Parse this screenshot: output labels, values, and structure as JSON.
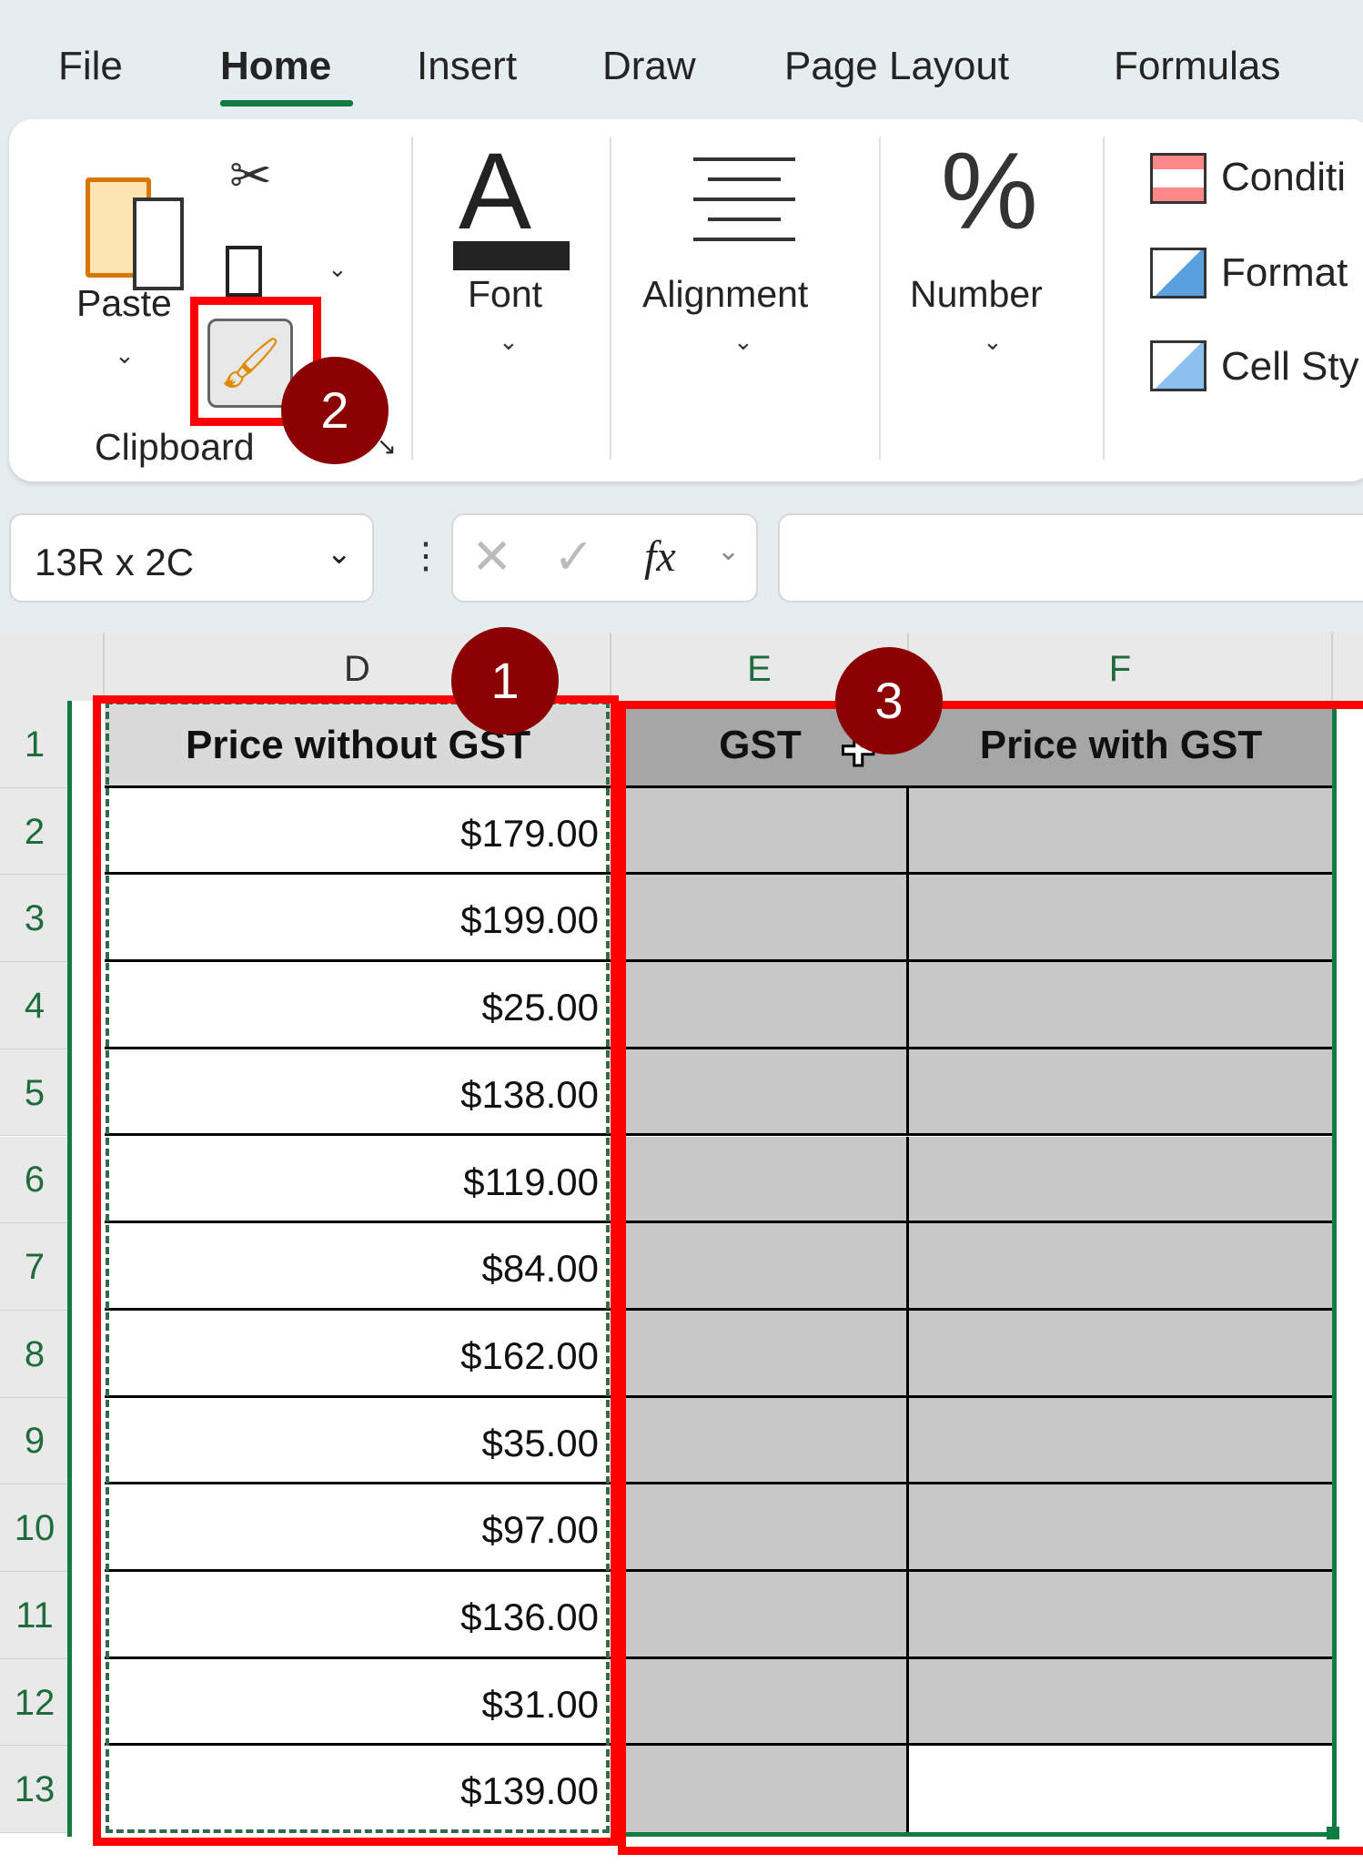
{
  "menu": {
    "tabs": [
      "File",
      "Home",
      "Insert",
      "Draw",
      "Page Layout",
      "Formulas"
    ],
    "active": "Home"
  },
  "ribbon": {
    "clipboard": {
      "paste": "Paste",
      "group": "Clipboard"
    },
    "font": "Font",
    "alignment": "Alignment",
    "number": "Number",
    "styles": {
      "conditional": "Conditi",
      "format": "Format",
      "cell_styles": "Cell Sty"
    }
  },
  "formula_bar": {
    "name_box": "13R x 2C",
    "fx": "fx",
    "value": ""
  },
  "sheet": {
    "columns": [
      "D",
      "E",
      "F"
    ],
    "headers": [
      "Price without GST",
      "GST",
      "Price with GST"
    ],
    "rows": [
      "1",
      "2",
      "3",
      "4",
      "5",
      "6",
      "7",
      "8",
      "9",
      "10",
      "11",
      "12",
      "13"
    ],
    "prices": [
      "$179.00",
      "$199.00",
      "$25.00",
      "$138.00",
      "$119.00",
      "$84.00",
      "$162.00",
      "$35.00",
      "$97.00",
      "$136.00",
      "$31.00",
      "$139.00"
    ]
  },
  "annotations": {
    "step1": "1",
    "step2": "2",
    "step3": "3"
  },
  "colors": {
    "accent": "#107c41",
    "highlight": "#ff0000",
    "badge": "#8b0000",
    "selection_fill": "#c8c8c8"
  }
}
